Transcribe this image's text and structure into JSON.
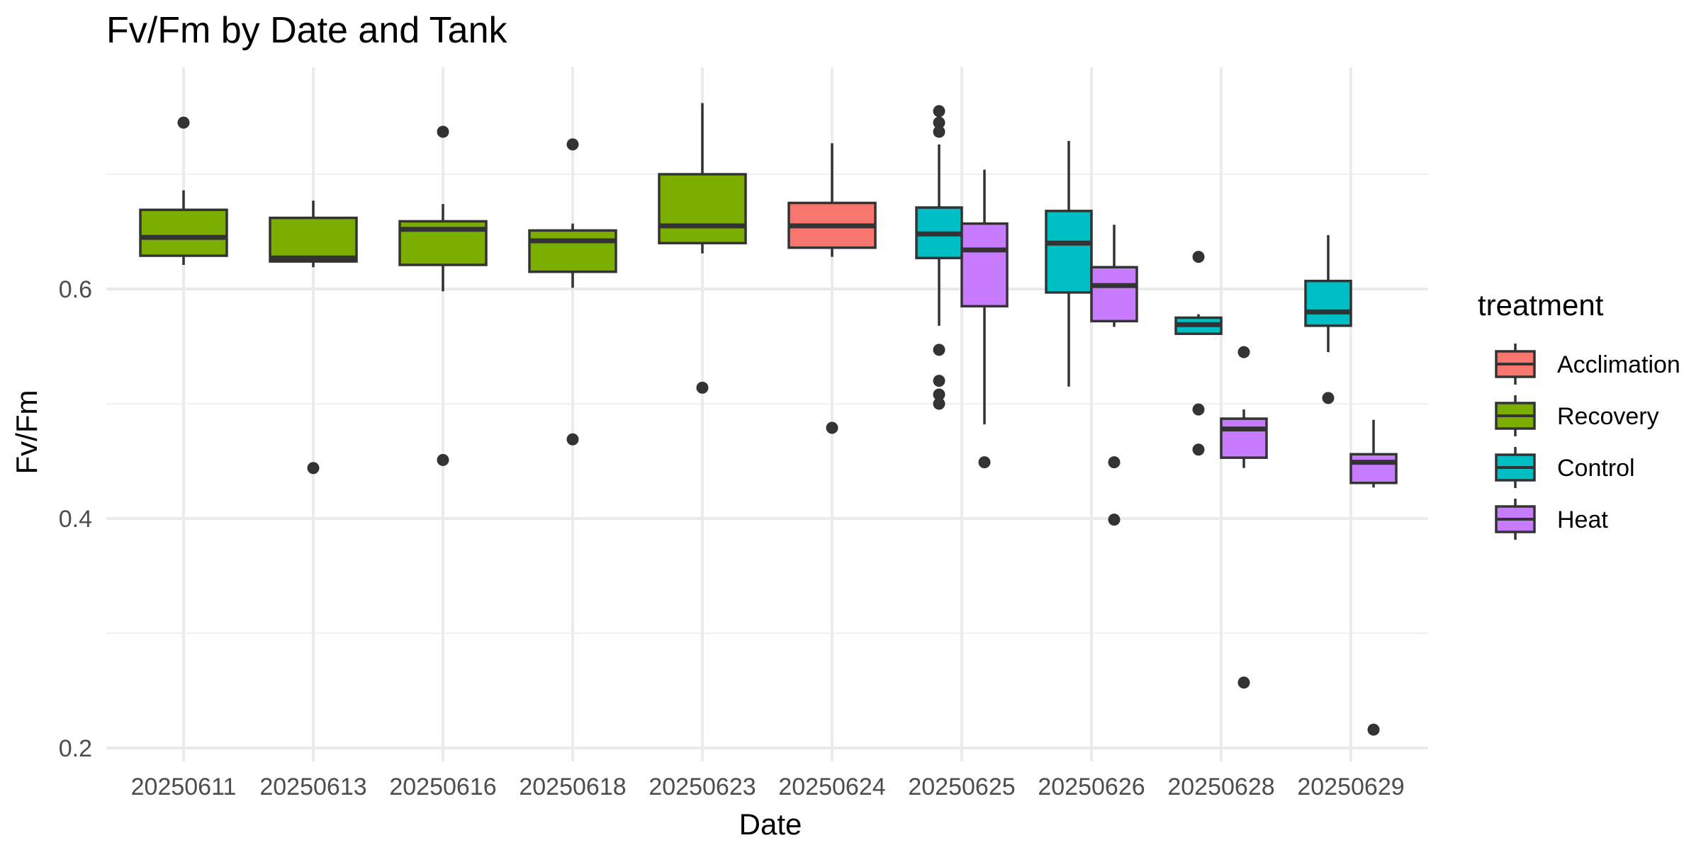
{
  "chart_data": {
    "type": "box",
    "title": "Fv/Fm by Date and Tank",
    "xlabel": "Date",
    "ylabel": "Fv/Fm",
    "ylim": [
      0.2,
      0.78
    ],
    "yticks": [
      0.2,
      0.4,
      0.6
    ],
    "grid": true,
    "legend_position": "right",
    "legend_title": "treatment",
    "categories": [
      "20250611",
      "20250613",
      "20250616",
      "20250618",
      "20250623",
      "20250624",
      "20250625",
      "20250626",
      "20250628",
      "20250629"
    ],
    "treatments": [
      {
        "name": "Acclimation",
        "color": "#F8766D"
      },
      {
        "name": "Recovery",
        "color": "#7CAE00"
      },
      {
        "name": "Control",
        "color": "#00BFC4"
      },
      {
        "name": "Heat",
        "color": "#C77CFF"
      }
    ],
    "boxes": [
      {
        "date": "20250611",
        "treatment": "Recovery",
        "offset": 0,
        "wmin": 0.621,
        "q1": 0.629,
        "median": 0.645,
        "q3": 0.669,
        "wmax": 0.686,
        "outliers": [
          0.745
        ]
      },
      {
        "date": "20250613",
        "treatment": "Recovery",
        "offset": 0,
        "wmin": 0.619,
        "q1": 0.624,
        "median": 0.627,
        "q3": 0.662,
        "wmax": 0.677,
        "outliers": [
          0.444
        ]
      },
      {
        "date": "20250616",
        "treatment": "Recovery",
        "offset": 0,
        "wmin": 0.598,
        "q1": 0.621,
        "median": 0.652,
        "q3": 0.659,
        "wmax": 0.674,
        "outliers": [
          0.737,
          0.451
        ]
      },
      {
        "date": "20250618",
        "treatment": "Recovery",
        "offset": 0,
        "wmin": 0.601,
        "q1": 0.615,
        "median": 0.642,
        "q3": 0.651,
        "wmax": 0.657,
        "outliers": [
          0.726,
          0.469
        ]
      },
      {
        "date": "20250623",
        "treatment": "Recovery",
        "offset": 0,
        "wmin": 0.631,
        "q1": 0.64,
        "median": 0.655,
        "q3": 0.7,
        "wmax": 0.762,
        "outliers": [
          0.514
        ]
      },
      {
        "date": "20250624",
        "treatment": "Acclimation",
        "offset": 0,
        "wmin": 0.628,
        "q1": 0.636,
        "median": 0.655,
        "q3": 0.675,
        "wmax": 0.727,
        "outliers": [
          0.479
        ]
      },
      {
        "date": "20250625",
        "treatment": "Control",
        "offset": -1,
        "wmin": 0.568,
        "q1": 0.627,
        "median": 0.648,
        "q3": 0.671,
        "wmax": 0.726,
        "outliers": [
          0.755,
          0.745,
          0.737,
          0.547,
          0.52,
          0.508,
          0.5
        ]
      },
      {
        "date": "20250625",
        "treatment": "Heat",
        "offset": 1,
        "wmin": 0.482,
        "q1": 0.585,
        "median": 0.634,
        "q3": 0.657,
        "wmax": 0.704,
        "outliers": [
          0.449
        ]
      },
      {
        "date": "20250626",
        "treatment": "Control",
        "offset": -1,
        "wmin": 0.515,
        "q1": 0.597,
        "median": 0.64,
        "q3": 0.668,
        "wmax": 0.729,
        "outliers": []
      },
      {
        "date": "20250626",
        "treatment": "Heat",
        "offset": 1,
        "wmin": 0.567,
        "q1": 0.572,
        "median": 0.603,
        "q3": 0.619,
        "wmax": 0.656,
        "outliers": [
          0.449,
          0.399
        ]
      },
      {
        "date": "20250628",
        "treatment": "Control",
        "offset": -1,
        "wmin": 0.56,
        "q1": 0.561,
        "median": 0.569,
        "q3": 0.575,
        "wmax": 0.578,
        "outliers": [
          0.628,
          0.495,
          0.46
        ]
      },
      {
        "date": "20250628",
        "treatment": "Heat",
        "offset": 1,
        "wmin": 0.444,
        "q1": 0.453,
        "median": 0.478,
        "q3": 0.487,
        "wmax": 0.495,
        "outliers": [
          0.545,
          0.257
        ]
      },
      {
        "date": "20250629",
        "treatment": "Control",
        "offset": -1,
        "wmin": 0.545,
        "q1": 0.568,
        "median": 0.58,
        "q3": 0.607,
        "wmax": 0.647,
        "outliers": [
          0.505
        ]
      },
      {
        "date": "20250629",
        "treatment": "Heat",
        "offset": 1,
        "wmin": 0.427,
        "q1": 0.431,
        "median": 0.449,
        "q3": 0.456,
        "wmax": 0.486,
        "outliers": [
          0.216
        ]
      }
    ]
  }
}
